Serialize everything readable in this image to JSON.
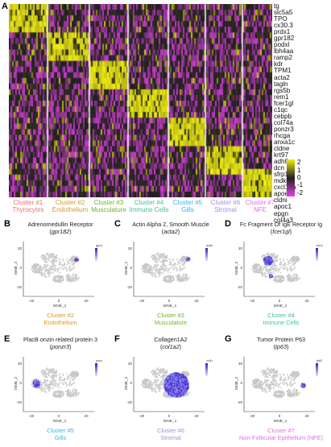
{
  "heatmap": {
    "panel_letter": "A",
    "genes": [
      "tg",
      "slc5a5",
      "TPO",
      "cx30.3",
      "prdx1",
      "gpr182",
      "podxl",
      "lbh4aa",
      "ramp2",
      "kdr",
      "TPM1",
      "acta2",
      "tagln",
      "rgs5b",
      "rem1",
      "fcer1gl",
      "c1qc",
      "cebpb",
      "col74a",
      "ponzr3",
      "rhcga",
      "anxa1c",
      "cldne",
      "krt97",
      "adh8a",
      "dcn",
      "sfrp1b",
      "mdkb",
      "cxcl12a",
      "apoeb",
      "cldni",
      "apoc1",
      "epgn",
      "col4a3"
    ],
    "clusters": [
      {
        "number": "Cluster #1",
        "name": "Thyrocytes",
        "color": "#e8716f"
      },
      {
        "number": "Cluster #2",
        "name": "Endothelium",
        "color": "#d49b28"
      },
      {
        "number": "Cluster #3",
        "name": "Musculature",
        "color": "#6bb62a"
      },
      {
        "number": "Cluster #4",
        "name": "Immune Cells",
        "color": "#3fbf9c"
      },
      {
        "number": "Cluster #5",
        "name": "Gills",
        "color": "#37b3e8"
      },
      {
        "number": "Cluster #6",
        "name": "Stromal",
        "color": "#a98be6"
      },
      {
        "number": "Cluster #7",
        "name": "NFE",
        "color": "#e46ee0"
      }
    ],
    "legend": {
      "ticks": [
        "2",
        "1",
        "0",
        "-1",
        "-2"
      ],
      "colors": {
        "high": "#f1ee12",
        "mid": "#1f1f1f",
        "low": "#e642e9"
      }
    }
  },
  "panels": [
    {
      "letter": "B",
      "title": "Adrenomedullin Receptor",
      "gene": "gpr182",
      "caption1": "Cluster #2",
      "caption2": "Endothelium",
      "color": "#d49b28",
      "scale": "gpr182"
    },
    {
      "letter": "C",
      "title": "Actin Alpha 2, Smooth Muscle",
      "gene": "acta2",
      "caption1": "Cluster #3",
      "caption2": "Musculature",
      "color": "#6bb62a",
      "scale": "acta2"
    },
    {
      "letter": "D",
      "title": "Fc Fragment Of IgE Receptor Ig",
      "gene": "fcer1gl",
      "caption1": "Cluster #4",
      "caption2": "Immune Cells",
      "color": "#3fbf9c",
      "scale": "fcer1gl"
    },
    {
      "letter": "E",
      "title": "PlacB onzin related protein 3",
      "gene": "ponzr3",
      "caption1": "Cluster #5",
      "caption2": "Gills",
      "color": "#37b3e8",
      "scale": "ponzr3"
    },
    {
      "letter": "F",
      "title": "Collagen1A2",
      "gene": "col1a2",
      "caption1": "Cluster #6",
      "caption2": "Stromal",
      "color": "#a98be6",
      "scale": "col1a2"
    },
    {
      "letter": "G",
      "title": "Tumor Protein P63",
      "gene": "tp63",
      "caption1": "Cluster #7",
      "caption2": "Non-Follicular Epithelium (NFE)",
      "color": "#e46ee0",
      "scale": "tp63"
    }
  ],
  "tsne": {
    "xlabel": "tSNE_1",
    "ylabel": "tSNE_2",
    "xticks": [
      "-20",
      "0",
      "20"
    ],
    "yticks": [
      "20",
      "0",
      "-20"
    ]
  }
}
